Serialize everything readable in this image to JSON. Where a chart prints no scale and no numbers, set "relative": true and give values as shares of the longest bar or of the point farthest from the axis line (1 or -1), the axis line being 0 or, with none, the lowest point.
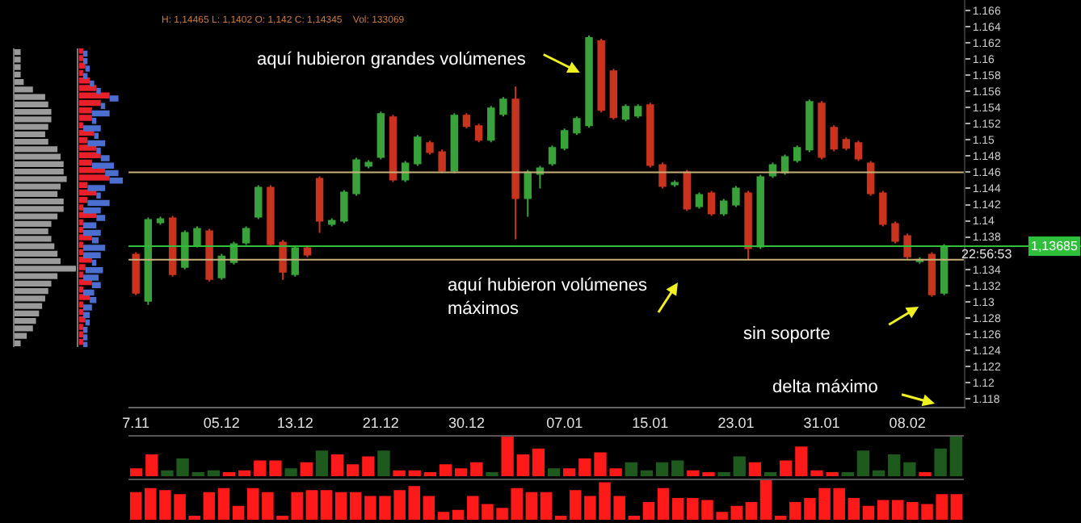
{
  "chart_data": [
    {
      "type": "bar",
      "orientation": "horizontal",
      "relative": true,
      "categories": [
        null,
        null,
        null,
        null,
        null,
        null,
        null,
        null,
        null,
        null,
        null,
        null,
        null,
        null,
        null,
        null,
        null,
        null,
        null,
        null,
        null,
        null,
        null,
        null,
        null,
        null,
        null,
        null,
        null,
        null,
        null,
        null,
        null,
        null,
        null,
        null,
        null,
        null,
        null,
        null
      ],
      "values": [
        0.1,
        0.1,
        0.1,
        0.1,
        0.15,
        0.3,
        0.5,
        0.55,
        0.6,
        0.6,
        0.55,
        0.5,
        0.55,
        0.7,
        0.75,
        0.8,
        0.8,
        0.85,
        0.75,
        0.7,
        0.8,
        0.8,
        0.7,
        0.6,
        0.55,
        0.6,
        0.65,
        0.7,
        0.75,
        1.0,
        0.7,
        0.6,
        0.55,
        0.5,
        0.45,
        0.4,
        0.35,
        0.3,
        0.2,
        0.1
      ],
      "color": "#9a9a9a",
      "grid": false
    },
    {
      "type": "bar",
      "orientation": "horizontal",
      "relative": true,
      "categories": [
        null,
        null,
        null,
        null,
        null,
        null,
        null,
        null,
        null,
        null,
        null,
        null,
        null,
        null,
        null,
        null,
        null,
        null,
        null,
        null,
        null,
        null,
        null,
        null,
        null,
        null,
        null,
        null,
        null,
        null,
        null,
        null,
        null,
        null,
        null,
        null,
        null,
        null,
        null,
        null
      ],
      "stacked": true,
      "series": [
        {
          "color": "#e8202a",
          "values": [
            0.1,
            0.1,
            0.15,
            0.1,
            0.25,
            0.4,
            0.7,
            0.5,
            0.3,
            0.3,
            0.1,
            0.35,
            0.2,
            0.4,
            0.5,
            0.3,
            0.6,
            0.7,
            0.2,
            0.4,
            0.2,
            0.1,
            0.4,
            0.1,
            0.1,
            0.3,
            0.1,
            0.1,
            0.3,
            0.15,
            0.1,
            0.3,
            0.1,
            0.25,
            0.1,
            0.1,
            0.15,
            0.1,
            0.1,
            0.1
          ]
        },
        {
          "color": "#4a6fd0",
          "values": [
            0.1,
            0.1,
            0.1,
            0.1,
            0.1,
            0.1,
            0.2,
            0.1,
            0.4,
            0.1,
            0.4,
            0.1,
            0.4,
            0.1,
            0.2,
            0.5,
            0.3,
            0.3,
            0.4,
            0.1,
            0.5,
            0.4,
            0.2,
            0.3,
            0.4,
            0.15,
            0.5,
            0.4,
            0.1,
            0.4,
            0.35,
            0.2,
            0.25,
            0.15,
            0.2,
            0.15,
            0.1,
            0.1,
            0.1,
            0.1
          ]
        }
      ],
      "grid": false
    },
    {
      "type": "candlestick",
      "categories": [
        "7.11",
        null,
        null,
        null,
        null,
        null,
        null,
        "05.12",
        null,
        null,
        null,
        null,
        null,
        "13.12",
        null,
        null,
        null,
        null,
        null,
        null,
        "21.12",
        null,
        null,
        null,
        null,
        null,
        null,
        "30.12",
        null,
        null,
        null,
        null,
        null,
        null,
        null,
        "07.01",
        null,
        null,
        null,
        null,
        null,
        null,
        "15.01",
        null,
        null,
        null,
        null,
        null,
        null,
        "23.01",
        null,
        null,
        null,
        null,
        null,
        null,
        "31.01",
        null,
        null,
        null,
        null,
        null,
        null,
        "08.02",
        null,
        null,
        null
      ],
      "ohlc": [
        [
          1.1358,
          1.1361,
          1.1308,
          1.1311
        ],
        [
          1.1301,
          1.1404,
          1.1296,
          1.1401
        ],
        [
          1.1398,
          1.1405,
          1.1395,
          1.1402
        ],
        [
          1.1403,
          1.1406,
          1.1331,
          1.1334
        ],
        [
          1.1343,
          1.1388,
          1.134,
          1.1385
        ],
        [
          1.137,
          1.1393,
          1.1367,
          1.139
        ],
        [
          1.1387,
          1.139,
          1.1325,
          1.1328
        ],
        [
          1.133,
          1.1359,
          1.1327,
          1.1356
        ],
        [
          1.1349,
          1.1374,
          1.1346,
          1.1371
        ],
        [
          1.1373,
          1.1393,
          1.137,
          1.139
        ],
        [
          1.1405,
          1.1444,
          1.1402,
          1.1441
        ],
        [
          1.1441,
          1.1444,
          1.1368,
          1.1371
        ],
        [
          1.1373,
          1.1376,
          1.1327,
          1.1337
        ],
        [
          1.1334,
          1.1369,
          1.1331,
          1.1366
        ],
        [
          1.1366,
          1.1369,
          1.1355,
          1.1358
        ],
        [
          1.1452,
          1.1455,
          1.1385,
          1.14
        ],
        [
          1.1396,
          1.1403,
          1.1393,
          1.14
        ],
        [
          1.14,
          1.1438,
          1.1397,
          1.1435
        ],
        [
          1.1434,
          1.1478,
          1.1431,
          1.1475
        ],
        [
          1.1468,
          1.1475,
          1.1465,
          1.1472
        ],
        [
          1.1479,
          1.1535,
          1.1476,
          1.1532
        ],
        [
          1.1528,
          1.1531,
          1.1448,
          1.1451
        ],
        [
          1.1451,
          1.1474,
          1.1448,
          1.1471
        ],
        [
          1.1471,
          1.1506,
          1.1468,
          1.1503
        ],
        [
          1.1496,
          1.1499,
          1.1482,
          1.1485
        ],
        [
          1.1485,
          1.1488,
          1.1459,
          1.1462
        ],
        [
          1.1462,
          1.1533,
          1.1459,
          1.153
        ],
        [
          1.153,
          1.1533,
          1.1514,
          1.1517
        ],
        [
          1.1517,
          1.152,
          1.1497,
          1.15
        ],
        [
          1.15,
          1.1542,
          1.1497,
          1.1539
        ],
        [
          1.1532,
          1.1553,
          1.1529,
          1.155
        ],
        [
          1.155,
          1.1566,
          1.1377,
          1.1428
        ],
        [
          1.1428,
          1.1463,
          1.1405,
          1.146
        ],
        [
          1.1458,
          1.1468,
          1.144,
          1.1465
        ],
        [
          1.1471,
          1.1493,
          1.1468,
          1.149
        ],
        [
          1.149,
          1.1514,
          1.1487,
          1.1511
        ],
        [
          1.1509,
          1.1529,
          1.1506,
          1.1526
        ],
        [
          1.1518,
          1.1629,
          1.1515,
          1.1626
        ],
        [
          1.1622,
          1.1625,
          1.1534,
          1.1537
        ],
        [
          1.1585,
          1.1588,
          1.1525,
          1.1528
        ],
        [
          1.1526,
          1.1544,
          1.1523,
          1.1541
        ],
        [
          1.153,
          1.1544,
          1.1527,
          1.1541
        ],
        [
          1.1543,
          1.1546,
          1.1466,
          1.1469
        ],
        [
          1.1469,
          1.1472,
          1.144,
          1.1443
        ],
        [
          1.1445,
          1.145,
          1.1442,
          1.1447
        ],
        [
          1.146,
          1.1463,
          1.1412,
          1.1415
        ],
        [
          1.1418,
          1.1435,
          1.1415,
          1.1432
        ],
        [
          1.1434,
          1.1437,
          1.1406,
          1.1409
        ],
        [
          1.1409,
          1.1427,
          1.1406,
          1.1424
        ],
        [
          1.142,
          1.1443,
          1.1417,
          1.144
        ],
        [
          1.1434,
          1.1437,
          1.1352,
          1.1366
        ],
        [
          1.1368,
          1.1457,
          1.1365,
          1.1454
        ],
        [
          1.1456,
          1.1472,
          1.1453,
          1.1469
        ],
        [
          1.146,
          1.1482,
          1.1457,
          1.1479
        ],
        [
          1.1475,
          1.1493,
          1.1472,
          1.149
        ],
        [
          1.1488,
          1.155,
          1.1485,
          1.1547
        ],
        [
          1.1545,
          1.1548,
          1.1476,
          1.1479
        ],
        [
          1.1515,
          1.1518,
          1.1486,
          1.1489
        ],
        [
          1.15,
          1.1503,
          1.1487,
          1.149
        ],
        [
          1.1496,
          1.1499,
          1.1474,
          1.1477
        ],
        [
          1.1471,
          1.1474,
          1.1431,
          1.1434
        ],
        [
          1.1434,
          1.1437,
          1.1393,
          1.1396
        ],
        [
          1.1396,
          1.1399,
          1.1372,
          1.1375
        ],
        [
          1.1381,
          1.1384,
          1.1353,
          1.1356
        ],
        [
          1.135,
          1.1355,
          1.1347,
          1.1352
        ],
        [
          1.1358,
          1.1361,
          1.1306,
          1.1309
        ],
        [
          1.1311,
          1.1371,
          1.1308,
          1.13685
        ]
      ],
      "colors": [
        "#c8341e",
        "#3aa23a",
        "#3aa23a",
        "#c8341e",
        "#3aa23a",
        "#3aa23a",
        "#c8341e",
        "#3aa23a",
        "#3aa23a",
        "#3aa23a",
        "#3aa23a",
        "#c8341e",
        "#c8341e",
        "#3aa23a",
        "#c8341e",
        "#c8341e",
        "#3aa23a",
        "#3aa23a",
        "#3aa23a",
        "#3aa23a",
        "#3aa23a",
        "#c8341e",
        "#3aa23a",
        "#3aa23a",
        "#c8341e",
        "#c8341e",
        "#3aa23a",
        "#c8341e",
        "#c8341e",
        "#3aa23a",
        "#3aa23a",
        "#c8341e",
        "#3aa23a",
        "#3aa23a",
        "#3aa23a",
        "#3aa23a",
        "#3aa23a",
        "#3aa23a",
        "#c8341e",
        "#c8341e",
        "#3aa23a",
        "#3aa23a",
        "#c8341e",
        "#c8341e",
        "#3aa23a",
        "#c8341e",
        "#3aa23a",
        "#c8341e",
        "#3aa23a",
        "#3aa23a",
        "#c8341e",
        "#3aa23a",
        "#3aa23a",
        "#3aa23a",
        "#3aa23a",
        "#3aa23a",
        "#c8341e",
        "#c8341e",
        "#c8341e",
        "#c8341e",
        "#c8341e",
        "#c8341e",
        "#c8341e",
        "#c8341e",
        "#3aa23a",
        "#c8341e",
        "#3aa23a"
      ],
      "ylim": [
        1.117,
        1.1673
      ],
      "yticks": [
        1.118,
        1.12,
        1.122,
        1.124,
        1.126,
        1.128,
        1.13,
        1.132,
        1.134,
        1.138,
        1.14,
        1.142,
        1.144,
        1.146,
        1.148,
        1.15,
        1.152,
        1.154,
        1.156,
        1.158,
        1.16,
        1.162,
        1.164,
        1.166
      ],
      "ref_lines": [
        {
          "axis": "y",
          "value": 1.146,
          "color": "#c8b07a"
        },
        {
          "axis": "y",
          "value": 1.1352,
          "color": "#c8b07a"
        },
        {
          "axis": "y",
          "value": 1.13685,
          "label": "1,13685",
          "color": "#2fbf3a"
        }
      ],
      "annotations": [
        "H: 1,14465 L: 1,1402 O: 1,142 C: 1,14345    Vol: 133069",
        "aquí hubieron grandes volúmenes",
        "aquí hubieron volúmenes\nmáximos",
        "sin soporte",
        "delta máximo",
        "22:56:53"
      ],
      "grid": false
    },
    {
      "type": "bar",
      "relative": true,
      "categories": [
        null,
        null,
        null,
        null,
        null,
        null,
        null,
        null,
        null,
        null,
        null,
        null,
        null,
        null,
        null,
        null,
        null,
        null,
        null,
        null,
        null,
        null,
        null,
        null,
        null,
        null,
        null,
        null,
        null,
        null,
        null,
        null,
        null,
        null,
        null,
        null,
        null,
        null,
        null,
        null,
        null,
        null,
        null,
        null,
        null,
        null,
        null,
        null,
        null,
        null,
        null,
        null,
        null,
        null
      ],
      "values": [
        0.2,
        0.55,
        0.15,
        0.45,
        0.1,
        0.15,
        0.1,
        0.15,
        0.4,
        0.4,
        0.2,
        0.35,
        0.65,
        0.55,
        0.3,
        0.5,
        0.65,
        0.15,
        0.15,
        0.1,
        0.3,
        0.2,
        0.35,
        0.1,
        1.0,
        0.55,
        0.7,
        0.2,
        0.2,
        0.45,
        0.6,
        0.2,
        0.35,
        0.15,
        0.35,
        0.4,
        0.15,
        0.1,
        0.1,
        0.5,
        0.35,
        0.1,
        0.4,
        0.75,
        0.15,
        0.1,
        0.1,
        0.65,
        0.15,
        0.55,
        0.35,
        0.1,
        0.7,
        1.0
      ],
      "colors": [
        "#ff1a1a",
        "#ff1a1a",
        "#1e5a1e",
        "#1e5a1e",
        "#1e5a1e",
        "#1e5a1e",
        "#ff1a1a",
        "#ff1a1a",
        "#ff1a1a",
        "#ff1a1a",
        "#1e5a1e",
        "#ff1a1a",
        "#1e5a1e",
        "#ff1a1a",
        "#ff1a1a",
        "#ff1a1a",
        "#1e5a1e",
        "#ff1a1a",
        "#ff1a1a",
        "#ff1a1a",
        "#ff1a1a",
        "#ff1a1a",
        "#ff1a1a",
        "#1e5a1e",
        "#ff1a1a",
        "#ff1a1a",
        "#ff1a1a",
        "#1e5a1e",
        "#ff1a1a",
        "#ff1a1a",
        "#ff1a1a",
        "#ff1a1a",
        "#1e5a1e",
        "#1e5a1e",
        "#1e5a1e",
        "#1e5a1e",
        "#ff1a1a",
        "#ff1a1a",
        "#1e5a1e",
        "#1e5a1e",
        "#ff1a1a",
        "#1e5a1e",
        "#ff1a1a",
        "#ff1a1a",
        "#ff1a1a",
        "#ff1a1a",
        "#1e5a1e",
        "#1e5a1e",
        "#1e5a1e",
        "#1e5a1e",
        "#1e5a1e",
        "#ff1a1a",
        "#1e5a1e",
        "#1e5a1e"
      ],
      "grid": false
    },
    {
      "type": "bar",
      "relative": true,
      "categories": [
        null,
        null,
        null,
        null,
        null,
        null,
        null,
        null,
        null,
        null,
        null,
        null,
        null,
        null,
        null,
        null,
        null,
        null,
        null,
        null,
        null,
        null,
        null,
        null,
        null,
        null,
        null,
        null,
        null,
        null,
        null,
        null,
        null,
        null,
        null,
        null,
        null,
        null,
        null,
        null,
        null,
        null,
        null,
        null,
        null,
        null,
        null,
        null,
        null,
        null,
        null,
        null,
        null,
        null,
        null,
        null,
        null
      ],
      "values": [
        0.7,
        0.8,
        0.75,
        0.65,
        0.1,
        0.7,
        0.8,
        0.35,
        0.8,
        0.7,
        0.1,
        0.7,
        0.75,
        0.75,
        0.7,
        0.7,
        0.6,
        0.6,
        0.75,
        0.85,
        0.6,
        0.2,
        0.25,
        0.6,
        0.4,
        0.3,
        0.8,
        0.7,
        0.7,
        0.1,
        0.75,
        0.6,
        0.95,
        0.6,
        0.1,
        0.45,
        0.8,
        0.55,
        0.55,
        0.5,
        0.2,
        0.35,
        0.45,
        1.0,
        0.1,
        0.45,
        0.55,
        0.8,
        0.8,
        0.55,
        0.35,
        0.5,
        0.5,
        0.45,
        0.4,
        0.65,
        0.65
      ],
      "color": "#ff1a1a",
      "grid": false
    }
  ]
}
